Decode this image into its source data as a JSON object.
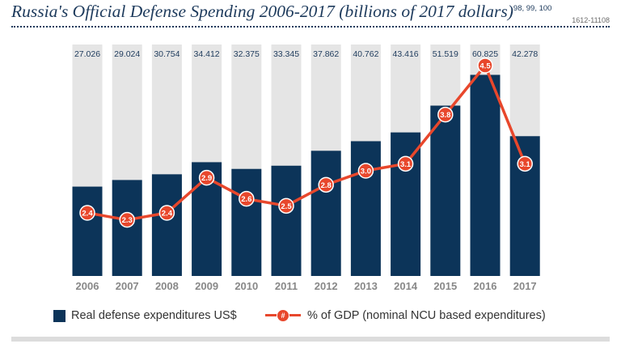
{
  "header": {
    "title": "Russia's Official Defense Spending 2006-2017 (billions of 2017 dollars)",
    "superscript": "98, 99, 100",
    "code": "1612-11108"
  },
  "legend": {
    "bar_label": "Real defense expenditures US$",
    "line_label": "% of GDP (nominal NCU based expenditures)",
    "line_marker": "#"
  },
  "colors": {
    "bar": "#0c3459",
    "background_bar": "#e5e5e5",
    "line": "#e8472c",
    "axis_text": "#888888",
    "value_text": "#1d3a5c"
  },
  "chart_data": {
    "type": "bar",
    "categories": [
      "2006",
      "2007",
      "2008",
      "2009",
      "2010",
      "2011",
      "2012",
      "2013",
      "2014",
      "2015",
      "2016",
      "2017"
    ],
    "series": [
      {
        "name": "Real defense expenditures US$",
        "type": "bar",
        "values": [
          27.026,
          29.024,
          30.754,
          34.412,
          32.375,
          33.345,
          37.862,
          40.762,
          43.416,
          51.519,
          60.825,
          42.278
        ]
      },
      {
        "name": "% of GDP (nominal NCU based expenditures)",
        "type": "line",
        "values": [
          2.4,
          2.3,
          2.4,
          2.9,
          2.6,
          2.5,
          2.8,
          3.0,
          3.1,
          3.8,
          4.5,
          3.1
        ]
      }
    ],
    "bar_value_labels": [
      "27.026",
      "29.024",
      "30.754",
      "34.412",
      "32.375",
      "33.345",
      "37.862",
      "40.762",
      "43.416",
      "51.519",
      "60.825",
      "42.278"
    ],
    "line_value_labels": [
      "2.4",
      "2.3",
      "2.4",
      "2.9",
      "2.6",
      "2.5",
      "2.8",
      "3.0",
      "3.1",
      "3.8",
      "4.5",
      "3.1"
    ],
    "ylim_bar": [
      0,
      70
    ],
    "ylim_line": [
      1.5,
      4.8
    ],
    "grid": false,
    "legend_position": "bottom"
  }
}
